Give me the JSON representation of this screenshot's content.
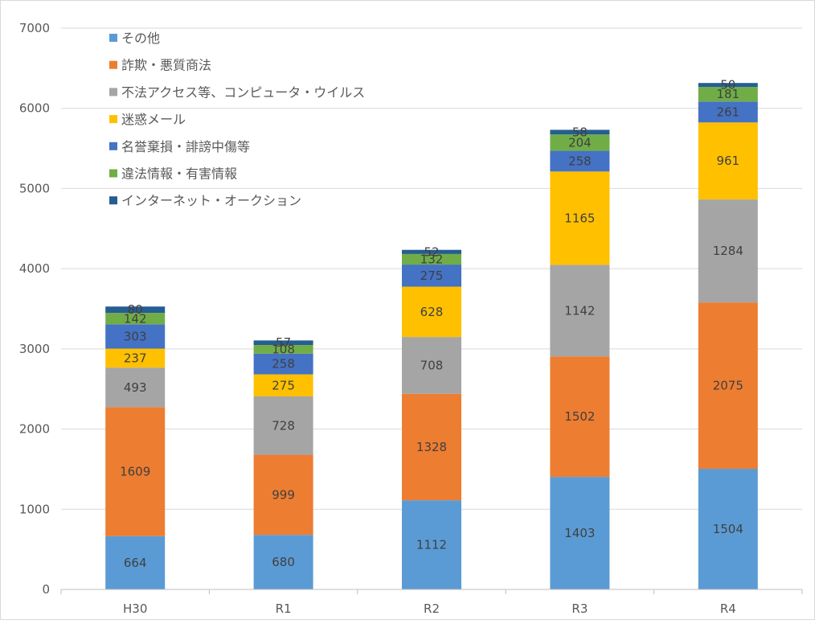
{
  "chart_data": {
    "type": "bar",
    "stacked": true,
    "categories": [
      "H30",
      "R1",
      "R2",
      "R3",
      "R4"
    ],
    "ylim": [
      0,
      7000
    ],
    "yticks": [
      0,
      1000,
      2000,
      3000,
      4000,
      5000,
      6000,
      7000
    ],
    "grid": true,
    "legend_position": "top-left",
    "series": [
      {
        "name": "その他",
        "color": "#5b9bd5",
        "values": [
          664,
          680,
          1112,
          1403,
          1504
        ]
      },
      {
        "name": "詐欺・悪質商法",
        "color": "#ed7d31",
        "values": [
          1609,
          999,
          1328,
          1502,
          2075
        ]
      },
      {
        "name": "不法アクセス等、コンピュータ・ウイルス",
        "color": "#a5a5a5",
        "values": [
          493,
          728,
          708,
          1142,
          1284
        ]
      },
      {
        "name": "迷惑メール",
        "color": "#ffc000",
        "values": [
          237,
          275,
          628,
          1165,
          961
        ]
      },
      {
        "name": "名誉棄損・誹謗中傷等",
        "color": "#4472c4",
        "values": [
          303,
          258,
          275,
          258,
          261
        ]
      },
      {
        "name": "違法情報・有害情報",
        "color": "#70ad47",
        "values": [
          142,
          108,
          132,
          204,
          181
        ]
      },
      {
        "name": "インターネット・オークション",
        "color": "#255e91",
        "values": [
          80,
          57,
          52,
          58,
          50
        ]
      }
    ]
  }
}
